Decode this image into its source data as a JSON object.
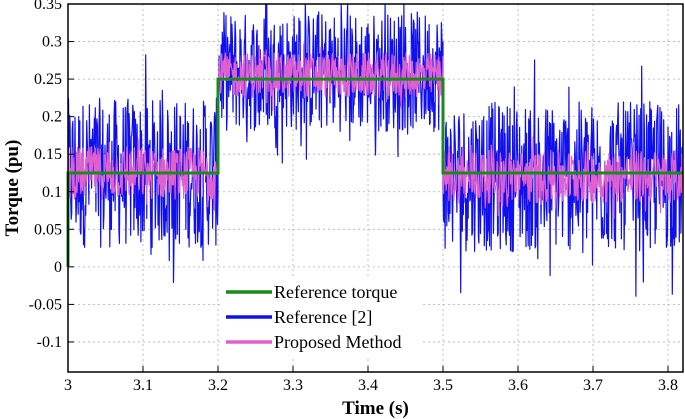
{
  "chart_data": {
    "type": "line",
    "title": "",
    "xlabel": "Time (s)",
    "ylabel": "Torque (pu)",
    "xlim": [
      3.0,
      3.82
    ],
    "ylim": [
      -0.14,
      0.35
    ],
    "xticks": [
      3.0,
      3.1,
      3.2,
      3.3,
      3.4,
      3.5,
      3.6,
      3.7,
      3.8
    ],
    "xtick_labels": [
      "3",
      "3.1",
      "3.2",
      "3.3",
      "3.4",
      "3.5",
      "3.6",
      "3.7",
      "3.8"
    ],
    "yticks": [
      -0.1,
      -0.05,
      0,
      0.05,
      0.1,
      0.15,
      0.2,
      0.25,
      0.3,
      0.35
    ],
    "ytick_labels": [
      "-0.1",
      "-0.05",
      "0",
      "0.05",
      "0.1",
      "0.15",
      "0.2",
      "0.25",
      "0.3",
      "0.35"
    ],
    "grid": true,
    "legend_position": "bottom-center",
    "series": [
      {
        "name": "Reference torque",
        "color": "#1a8a1a",
        "style": "step",
        "points": [
          [
            3.0,
            0.0
          ],
          [
            3.0,
            0.125
          ],
          [
            3.2,
            0.125
          ],
          [
            3.2,
            0.25
          ],
          [
            3.5,
            0.25
          ],
          [
            3.5,
            0.125
          ],
          [
            3.82,
            0.125
          ]
        ]
      },
      {
        "name": "Reference [2]",
        "color": "#1010ee",
        "style": "noise-band",
        "segments": [
          {
            "x": [
              3.0,
              3.2
            ],
            "center": 0.125,
            "amplitude": 0.1
          },
          {
            "x": [
              3.2,
              3.5
            ],
            "center": 0.26,
            "amplitude": 0.08
          },
          {
            "x": [
              3.5,
              3.82
            ],
            "center": 0.12,
            "amplitude": 0.1
          }
        ]
      },
      {
        "name": "Proposed Method",
        "color": "#e060d0",
        "style": "noise-band",
        "segments": [
          {
            "x": [
              3.0,
              3.2
            ],
            "center": 0.125,
            "amplitude": 0.035
          },
          {
            "x": [
              3.2,
              3.5
            ],
            "center": 0.255,
            "amplitude": 0.03
          },
          {
            "x": [
              3.5,
              3.82
            ],
            "center": 0.12,
            "amplitude": 0.035
          }
        ]
      }
    ]
  }
}
